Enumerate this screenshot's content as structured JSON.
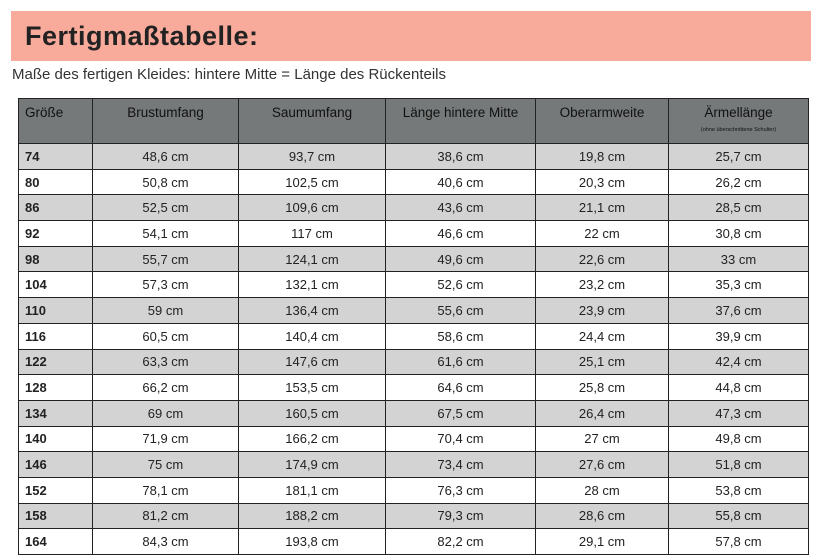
{
  "title": "Fertigmaßtabelle:",
  "subtitle": "Maße des fertigen Kleides: hintere Mitte = Länge des Rückenteils",
  "colors": {
    "banner": "#f8aa9b",
    "header": "#767979",
    "alt_row": "#d3d3d3"
  },
  "table": {
    "headers": [
      "Größe",
      "Brustumfang",
      "Saumumfang",
      "Länge hintere Mitte",
      "Oberarmweite",
      "Ärmellänge"
    ],
    "header_note": "(ohne überschnittene Schulter)",
    "rows": [
      [
        "74",
        "48,6 cm",
        "93,7 cm",
        "38,6 cm",
        "19,8 cm",
        "25,7 cm"
      ],
      [
        "80",
        "50,8 cm",
        "102,5 cm",
        "40,6 cm",
        "20,3 cm",
        "26,2 cm"
      ],
      [
        "86",
        "52,5 cm",
        "109,6 cm",
        "43,6 cm",
        "21,1 cm",
        "28,5 cm"
      ],
      [
        "92",
        "54,1 cm",
        "117 cm",
        "46,6 cm",
        "22 cm",
        "30,8 cm"
      ],
      [
        "98",
        "55,7 cm",
        "124,1 cm",
        "49,6 cm",
        "22,6 cm",
        "33 cm"
      ],
      [
        "104",
        "57,3 cm",
        "132,1 cm",
        "52,6 cm",
        "23,2 cm",
        "35,3 cm"
      ],
      [
        "110",
        "59 cm",
        "136,4 cm",
        "55,6 cm",
        "23,9 cm",
        "37,6 cm"
      ],
      [
        "116",
        "60,5 cm",
        "140,4 cm",
        "58,6 cm",
        "24,4 cm",
        "39,9 cm"
      ],
      [
        "122",
        "63,3 cm",
        "147,6 cm",
        "61,6 cm",
        "25,1 cm",
        "42,4 cm"
      ],
      [
        "128",
        "66,2 cm",
        "153,5 cm",
        "64,6 cm",
        "25,8 cm",
        "44,8 cm"
      ],
      [
        "134",
        "69 cm",
        "160,5 cm",
        "67,5 cm",
        "26,4 cm",
        "47,3 cm"
      ],
      [
        "140",
        "71,9 cm",
        "166,2 cm",
        "70,4 cm",
        "27 cm",
        "49,8 cm"
      ],
      [
        "146",
        "75 cm",
        "174,9 cm",
        "73,4 cm",
        "27,6 cm",
        "51,8 cm"
      ],
      [
        "152",
        "78,1 cm",
        "181,1 cm",
        "76,3 cm",
        "28 cm",
        "53,8 cm"
      ],
      [
        "158",
        "81,2 cm",
        "188,2 cm",
        "79,3 cm",
        "28,6 cm",
        "55,8 cm"
      ],
      [
        "164",
        "84,3 cm",
        "193,8 cm",
        "82,2 cm",
        "29,1 cm",
        "57,8 cm"
      ]
    ]
  }
}
